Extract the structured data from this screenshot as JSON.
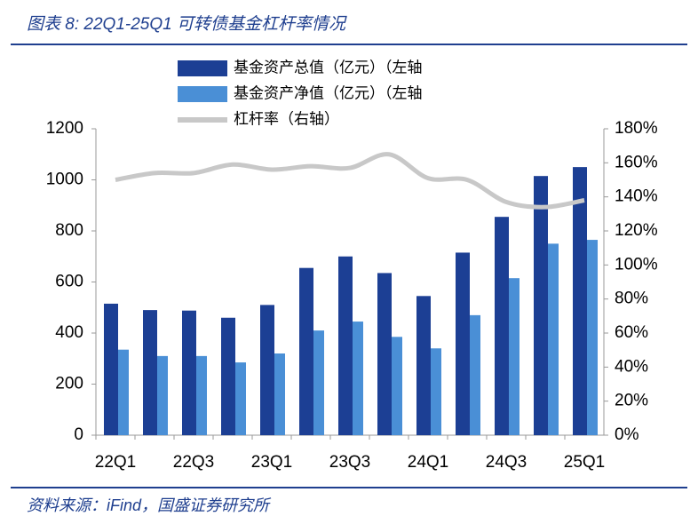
{
  "chart_data": {
    "type": "bar-line",
    "title": "图表 8:  22Q1-25Q1 可转债基金杠杆率情况",
    "source": "资料来源：iFind，国盛证券研究所",
    "categories": [
      "22Q1",
      null,
      "22Q3",
      null,
      "23Q1",
      null,
      "23Q3",
      null,
      "24Q1",
      null,
      "24Q3",
      null,
      "25Q1"
    ],
    "series": [
      {
        "name": "基金资产总值（亿元）（左轴",
        "color": "#1c3f94",
        "type": "bar",
        "values": [
          515,
          490,
          488,
          460,
          510,
          655,
          700,
          635,
          545,
          715,
          855,
          1015,
          1050
        ]
      },
      {
        "name": "基金资产净值（亿元）（左轴",
        "color": "#4a8fd6",
        "type": "bar",
        "values": [
          335,
          310,
          310,
          285,
          320,
          410,
          445,
          385,
          340,
          470,
          615,
          750,
          765
        ]
      },
      {
        "name": "杠杆率（右轴）",
        "color": "#c8c8c8",
        "type": "line",
        "axis": "y2",
        "values": [
          150,
          154,
          154,
          159,
          156,
          158,
          157,
          165,
          151,
          150,
          137,
          134,
          138
        ]
      }
    ],
    "ylim": [
      0,
      1200
    ],
    "yticks": [
      0,
      200,
      400,
      600,
      800,
      1000,
      1200
    ],
    "y2lim": [
      0,
      180
    ],
    "y2ticks": [
      {
        "value": 0,
        "label": "0%"
      },
      {
        "value": 20,
        "label": "20%"
      },
      {
        "value": 40,
        "label": "40%"
      },
      {
        "value": 60,
        "label": "60%"
      },
      {
        "value": 80,
        "label": "80%"
      },
      {
        "value": 100,
        "label": "100%"
      },
      {
        "value": 120,
        "label": "120%"
      },
      {
        "value": 140,
        "label": "140%"
      },
      {
        "value": 160,
        "label": "160%"
      },
      {
        "value": 180,
        "label": "180%"
      }
    ],
    "grid": false
  }
}
